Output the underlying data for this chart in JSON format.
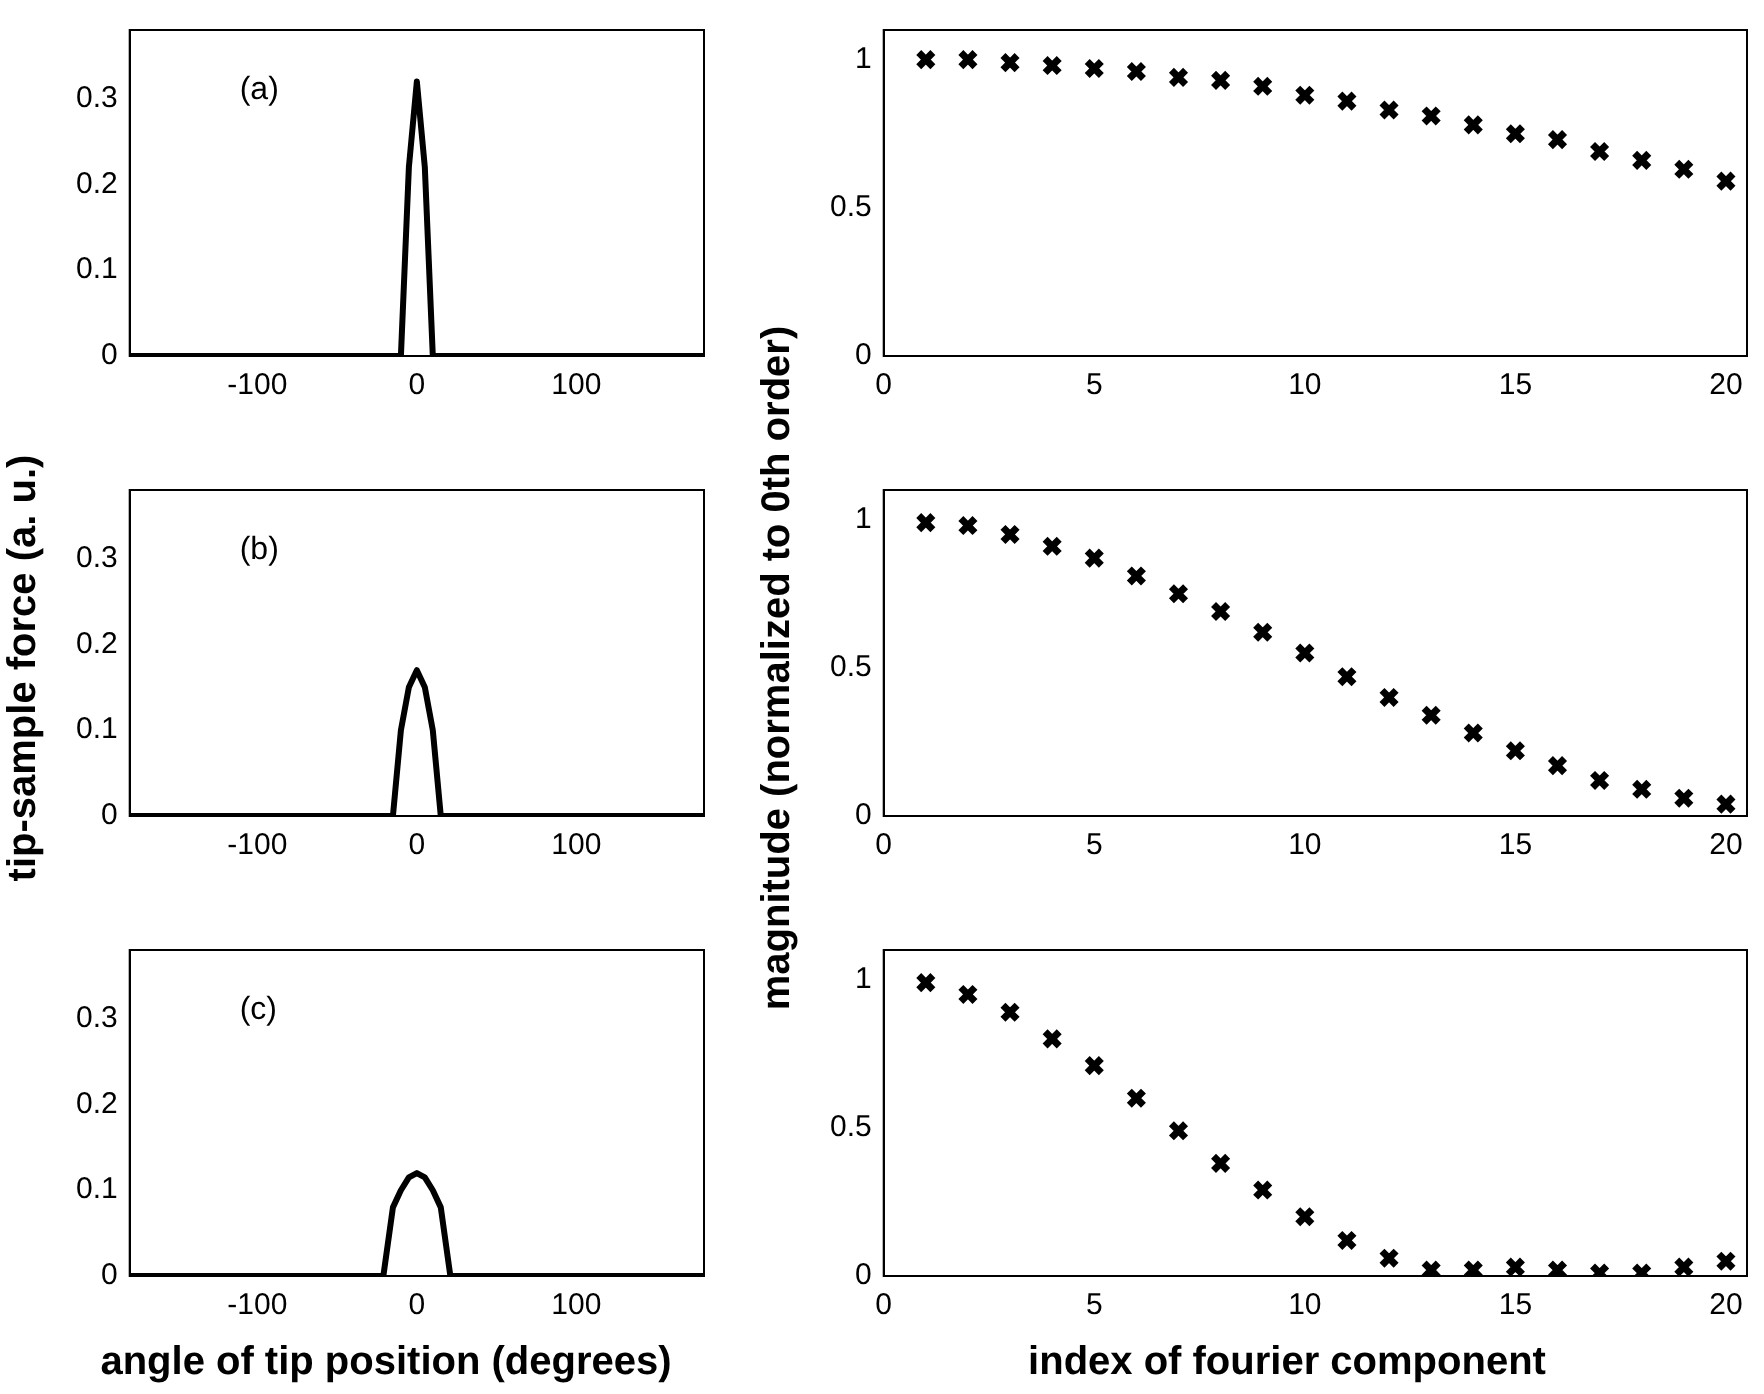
{
  "chart_data": [
    {
      "type": "line",
      "x": [
        -180,
        -10,
        -5,
        0,
        5,
        10,
        180
      ],
      "values": [
        0,
        0,
        0.22,
        0.32,
        0.22,
        0,
        0
      ],
      "color": "#000000",
      "marker": "none",
      "line_style": "solid",
      "xlim": [
        -180,
        180
      ],
      "ylim": [
        0,
        0.38
      ],
      "xticks": [
        -100,
        0,
        100
      ],
      "yticks": [
        0,
        0.1,
        0.2,
        0.3
      ],
      "annotations": [
        "(a)"
      ]
    },
    {
      "type": "scatter",
      "x": [
        1,
        2,
        3,
        4,
        5,
        6,
        7,
        8,
        9,
        10,
        11,
        12,
        13,
        14,
        15,
        16,
        17,
        18,
        19,
        20
      ],
      "values": [
        1.0,
        1.0,
        0.99,
        0.98,
        0.97,
        0.96,
        0.94,
        0.93,
        0.91,
        0.88,
        0.86,
        0.83,
        0.81,
        0.78,
        0.75,
        0.73,
        0.69,
        0.66,
        0.63,
        0.59
      ],
      "color": "#000000",
      "marker": "cross",
      "xlim": [
        0,
        20.5
      ],
      "ylim": [
        0,
        1.1
      ],
      "xticks": [
        0,
        5,
        10,
        15,
        20
      ],
      "yticks": [
        0,
        0.5,
        1
      ]
    },
    {
      "type": "line",
      "x": [
        -180,
        -15,
        -10,
        -5,
        0,
        5,
        10,
        15,
        180
      ],
      "values": [
        0,
        0,
        0.1,
        0.15,
        0.17,
        0.15,
        0.1,
        0,
        0
      ],
      "color": "#000000",
      "marker": "none",
      "line_style": "solid",
      "xlim": [
        -180,
        180
      ],
      "ylim": [
        0,
        0.38
      ],
      "xticks": [
        -100,
        0,
        100
      ],
      "yticks": [
        0,
        0.1,
        0.2,
        0.3
      ],
      "ylabel": "tip-sample force (a. u.)",
      "annotations": [
        "(b)"
      ]
    },
    {
      "type": "scatter",
      "x": [
        1,
        2,
        3,
        4,
        5,
        6,
        7,
        8,
        9,
        10,
        11,
        12,
        13,
        14,
        15,
        16,
        17,
        18,
        19,
        20
      ],
      "values": [
        0.99,
        0.98,
        0.95,
        0.91,
        0.87,
        0.81,
        0.75,
        0.69,
        0.62,
        0.55,
        0.47,
        0.4,
        0.34,
        0.28,
        0.22,
        0.17,
        0.12,
        0.09,
        0.06,
        0.04
      ],
      "color": "#000000",
      "marker": "cross",
      "xlim": [
        0,
        20.5
      ],
      "ylim": [
        0,
        1.1
      ],
      "xticks": [
        0,
        5,
        10,
        15,
        20
      ],
      "yticks": [
        0,
        0.5,
        1
      ],
      "ylabel": "magnitude (normalized to 0th order)"
    },
    {
      "type": "line",
      "x": [
        -180,
        -21,
        -15,
        -10,
        -5,
        0,
        5,
        10,
        15,
        21,
        180
      ],
      "values": [
        0,
        0,
        0.08,
        0.1,
        0.115,
        0.12,
        0.115,
        0.1,
        0.08,
        0,
        0
      ],
      "color": "#000000",
      "marker": "none",
      "line_style": "solid",
      "xlim": [
        -180,
        180
      ],
      "ylim": [
        0,
        0.38
      ],
      "xticks": [
        -100,
        0,
        100
      ],
      "yticks": [
        0,
        0.1,
        0.2,
        0.3
      ],
      "xlabel": "angle of tip position (degrees)",
      "annotations": [
        "(c)"
      ]
    },
    {
      "type": "scatter",
      "x": [
        1,
        2,
        3,
        4,
        5,
        6,
        7,
        8,
        9,
        10,
        11,
        12,
        13,
        14,
        15,
        16,
        17,
        18,
        19,
        20
      ],
      "values": [
        0.99,
        0.95,
        0.89,
        0.8,
        0.71,
        0.6,
        0.49,
        0.38,
        0.29,
        0.2,
        0.12,
        0.06,
        0.02,
        0.02,
        0.03,
        0.02,
        0.01,
        0.01,
        0.03,
        0.05
      ],
      "color": "#000000",
      "marker": "cross",
      "xlim": [
        0,
        20.5
      ],
      "ylim": [
        0,
        1.1
      ],
      "xticks": [
        0,
        5,
        10,
        15,
        20
      ],
      "yticks": [
        0,
        0.5,
        1
      ],
      "xlabel": "index of fourier component"
    }
  ]
}
